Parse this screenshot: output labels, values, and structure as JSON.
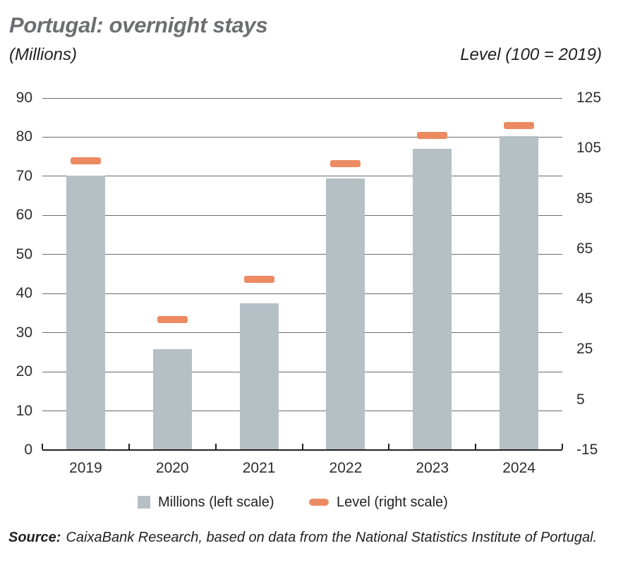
{
  "header": {
    "title": "Portugal: overnight stays",
    "subtitle_left": "(Millions)",
    "subtitle_right": "Level (100 = 2019)"
  },
  "chart_data": {
    "type": "bar",
    "title": "Portugal: overnight stays",
    "categories": [
      "2019",
      "2020",
      "2021",
      "2022",
      "2023",
      "2024"
    ],
    "series": [
      {
        "name": "Millions (left scale)",
        "type": "bar",
        "axis": "left",
        "values": [
          70.2,
          25.8,
          37.5,
          69.5,
          77.1,
          80.3
        ]
      },
      {
        "name": "Level (right scale)",
        "type": "dash",
        "axis": "right",
        "values": [
          100,
          37,
          53,
          99,
          110,
          114
        ]
      }
    ],
    "left_axis": {
      "label": "(Millions)",
      "min": 0,
      "max": 90,
      "ticks": [
        0,
        10,
        20,
        30,
        40,
        50,
        60,
        70,
        80,
        90
      ]
    },
    "right_axis": {
      "label": "Level (100 = 2019)",
      "min": -15,
      "max": 125,
      "ticks": [
        -15,
        5,
        25,
        45,
        65,
        85,
        105,
        125
      ]
    },
    "grid": true,
    "legend_position": "bottom"
  },
  "legend": {
    "items": [
      {
        "label": "Millions (left scale)",
        "swatch": "square"
      },
      {
        "label": "Level (right scale)",
        "swatch": "dash"
      }
    ]
  },
  "source": {
    "label": "Source:",
    "text": "CaixaBank Research, based on data from the National Statistics Institute of Portugal."
  },
  "colors": {
    "bar": "#b4c0c4",
    "level": "#ec8a62",
    "title": "#6d6e71",
    "text": "#231f20",
    "grid": "#6a6b6d",
    "axis": "#231f20"
  }
}
